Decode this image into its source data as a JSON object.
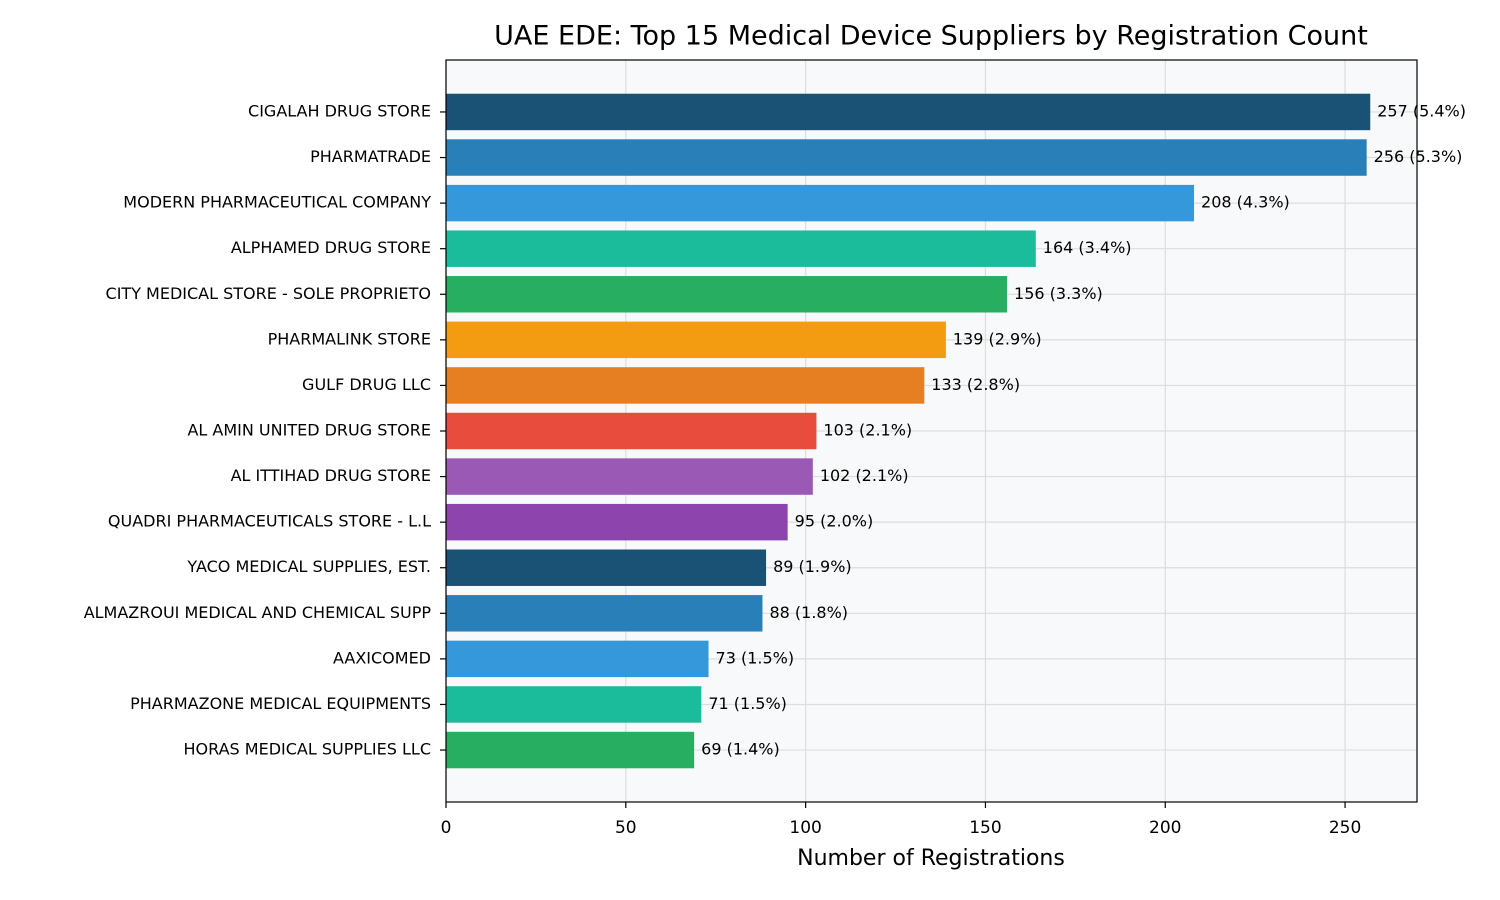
{
  "chart_data": {
    "type": "barh",
    "title": "UAE EDE: Top 15 Medical Device Suppliers by Registration Count",
    "x_label": "Number of Registrations",
    "categories": [
      "CIGALAH DRUG STORE",
      "PHARMATRADE",
      "MODERN PHARMACEUTICAL COMPANY",
      "ALPHAMED DRUG STORE",
      "CITY MEDICAL STORE - SOLE PROPRIETO",
      "PHARMALINK STORE",
      "GULF DRUG LLC",
      "AL AMIN UNITED DRUG STORE",
      "AL ITTIHAD DRUG STORE",
      "QUADRI PHARMACEUTICALS  STORE - L.L",
      "YACO MEDICAL SUPPLIES, EST.",
      "ALMAZROUI MEDICAL AND CHEMICAL SUPP",
      "AAXICOMED",
      "PHARMAZONE MEDICAL EQUIPMENTS",
      "HORAS MEDICAL SUPPLIES LLC"
    ],
    "values": [
      257,
      256,
      208,
      164,
      156,
      139,
      133,
      103,
      102,
      95,
      89,
      88,
      73,
      71,
      69
    ],
    "value_labels": [
      "257 (5.4%)",
      "256 (5.3%)",
      "208 (4.3%)",
      "164 (3.4%)",
      "156 (3.3%)",
      "139 (2.9%)",
      "133 (2.8%)",
      "103 (2.1%)",
      "102 (2.1%)",
      "95 (2.0%)",
      "89 (1.9%)",
      "88 (1.8%)",
      "73 (1.5%)",
      "71 (1.5%)",
      "69 (1.4%)"
    ],
    "colors": [
      "#1a5276",
      "#2980b9",
      "#3498db",
      "#1abc9c",
      "#27ae60",
      "#f39c12",
      "#e67e22",
      "#e74c3c",
      "#9b59b6",
      "#8e44ad",
      "#1a5276",
      "#2980b9",
      "#3498db",
      "#1abc9c",
      "#27ae60"
    ],
    "xlim": [
      0,
      270
    ],
    "xticks": [
      0,
      50,
      100,
      150,
      200,
      250
    ],
    "grid": true
  }
}
